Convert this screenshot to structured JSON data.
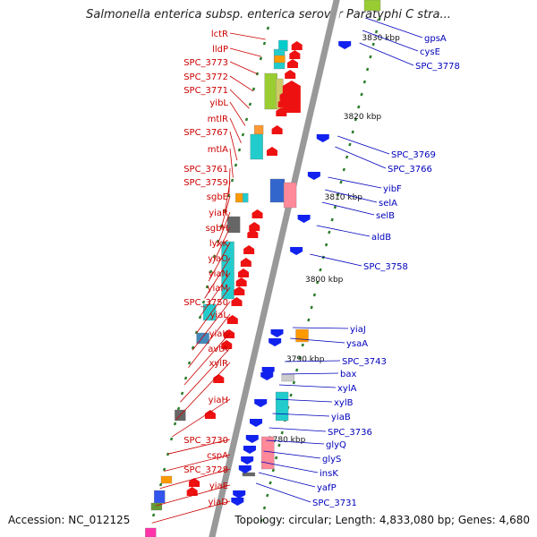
{
  "title": "Salmonella enterica subsp. enterica serovar Paratyphi C stra...",
  "accession": "Accession: NC_012125",
  "topology": "Topology: circular; Length: 4,833,080 bp; Genes: 4,680",
  "colors": {
    "left_label": "#cc0000",
    "right_label": "#0000bb",
    "backbone": "#999999",
    "tick": "#2a7d2a"
  },
  "kbp_ticks": [
    "3830 kbp",
    "3820 kbp",
    "3810 kbp",
    "3800 kbp",
    "3790 kbp",
    "3780 kbp"
  ],
  "left_genes": [
    "lctR",
    "lldP",
    "SPC_3773",
    "SPC_3772",
    "SPC_3771",
    "yibL",
    "mtlR",
    "SPC_3767",
    "mtlA",
    "SPC_3761",
    "SPC_3759",
    "sgbE",
    "yiaR",
    "sgbH",
    "lyxK",
    "yiaO",
    "yiaN",
    "yiaM",
    "SPC_3750",
    "yiaL",
    "yiaK",
    "avtA",
    "xylR",
    "yiaH",
    "SPC_3730",
    "cspA",
    "SPC_3728",
    "yiaE",
    "yiaD"
  ],
  "right_genes": [
    "gpsA",
    "cysE",
    "SPC_3778",
    "SPC_3769",
    "SPC_3766",
    "yibF",
    "selA",
    "selB",
    "aldB",
    "SPC_3758",
    "yiaJ",
    "ysaA",
    "SPC_3743",
    "bax",
    "xylA",
    "xylB",
    "yiaB",
    "SPC_3736",
    "glyQ",
    "glyS",
    "insK",
    "yafP",
    "SPC_3731"
  ]
}
